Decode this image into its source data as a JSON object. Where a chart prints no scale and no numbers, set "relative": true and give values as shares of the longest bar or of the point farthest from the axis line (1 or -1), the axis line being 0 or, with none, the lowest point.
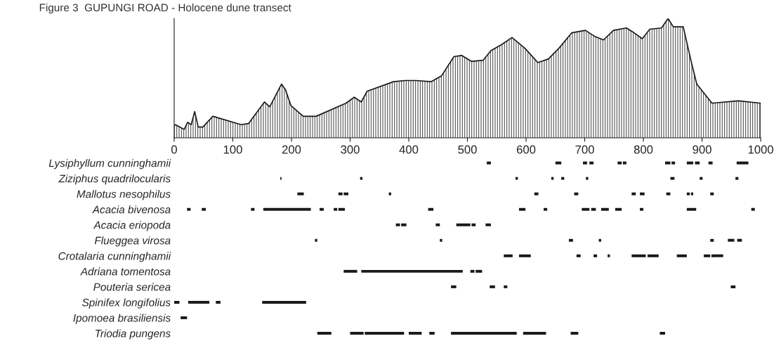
{
  "chart_data": [
    {
      "type": "area",
      "title": "Figure 3  GUPUNGI ROAD - Holocene dune transect",
      "relative": true,
      "color": "#1a1a1a",
      "tick_labels": "x",
      "xlim": [
        0,
        1000
      ],
      "xticks": [
        0,
        100,
        200,
        300,
        400,
        500,
        600,
        700,
        800,
        900,
        1000
      ],
      "grid": false,
      "legend": false,
      "x": [
        0,
        2,
        17,
        23,
        29,
        35,
        41,
        49,
        66,
        114,
        127,
        154,
        163,
        183,
        190,
        199,
        220,
        242,
        293,
        307,
        319,
        329,
        374,
        394,
        412,
        438,
        456,
        477,
        490,
        507,
        527,
        540,
        558,
        576,
        598,
        620,
        638,
        656,
        678,
        701,
        717,
        732,
        749,
        771,
        784,
        798,
        811,
        831,
        842,
        851,
        868,
        881,
        891,
        917,
        962,
        1000
      ],
      "values": [
        0.1,
        0.11,
        0.07,
        0.13,
        0.11,
        0.22,
        0.09,
        0.09,
        0.18,
        0.11,
        0.12,
        0.3,
        0.26,
        0.45,
        0.4,
        0.27,
        0.18,
        0.18,
        0.29,
        0.34,
        0.3,
        0.39,
        0.47,
        0.48,
        0.48,
        0.47,
        0.52,
        0.68,
        0.69,
        0.64,
        0.65,
        0.73,
        0.78,
        0.84,
        0.75,
        0.63,
        0.66,
        0.75,
        0.88,
        0.9,
        0.85,
        0.82,
        0.9,
        0.92,
        0.88,
        0.83,
        0.91,
        0.92,
        1.0,
        0.93,
        0.93,
        0.65,
        0.45,
        0.29,
        0.31,
        0.29
      ]
    },
    {
      "type": "bar",
      "orientation": "horizontal",
      "tick_labels": "y",
      "xlim": [
        0,
        1000
      ],
      "grid": false,
      "legend": false,
      "color": "#1a1a1a",
      "categories": [
        "Lysiphyllum cunninghamii",
        "Ziziphus quadrilocularis",
        "Mallotus nesophilus",
        "Acacia bivenosa",
        "Acacia eriopoda",
        "Flueggea virosa",
        "Crotalaria cunninghamii",
        "Adriana tomentosa",
        "Pouteria sericea",
        "Spinifex longifolius",
        "Ipomoea brasiliensis",
        "Triodia pungens"
      ],
      "series": [
        {
          "values": [
            7,
            2,
            11,
            6,
            7,
            4,
            15,
            23,
            9,
            9,
            11,
            24
          ],
          "base": [
            533,
            181,
            210,
            22,
            378,
            240,
            562,
            289,
            472,
            0,
            11,
            244
          ]
        },
        {
          "values": [
            10,
            4,
            7,
            7,
            9,
            4,
            20,
            173,
            9,
            36,
            null,
            23
          ],
          "base": [
            650,
            317,
            280,
            47,
            387,
            453,
            588,
            319,
            538,
            24,
            null,
            300
          ]
        },
        {
          "values": [
            7,
            4,
            8,
            6,
            7,
            7,
            7,
            7,
            6,
            8,
            null,
            67
          ],
          "base": [
            697,
            582,
            289,
            131,
            446,
            673,
            686,
            505,
            562,
            71,
            null,
            325
          ]
        },
        {
          "values": [
            7,
            4,
            4,
            81,
            24,
            4,
            6,
            11,
            8,
            75,
            null,
            22
          ],
          "base": [
            708,
            643,
            366,
            152,
            481,
            724,
            715,
            514,
            949,
            150,
            null,
            400
          ]
        },
        {
          "values": [
            7,
            5,
            7,
            7,
            7,
            6,
            4,
            null,
            null,
            null,
            null,
            9
          ],
          "base": [
            756,
            660,
            614,
            248,
            507,
            914,
            739,
            null,
            null,
            null,
            null,
            435
          ]
        },
        {
          "values": [
            6,
            4,
            7,
            6,
            9,
            11,
            24,
            null,
            null,
            null,
            null,
            112
          ],
          "base": [
            765,
            702,
            682,
            272,
            531,
            944,
            780,
            null,
            null,
            null,
            null,
            472
          ]
        },
        {
          "values": [
            9,
            7,
            7,
            11,
            null,
            8,
            19,
            null,
            null,
            null,
            null,
            39
          ],
          "base": [
            837,
            846,
            780,
            280,
            null,
            960,
            807,
            null,
            null,
            null,
            null,
            595
          ]
        },
        {
          "values": [
            6,
            5,
            8,
            9,
            null,
            null,
            17,
            null,
            null,
            null,
            null,
            13
          ],
          "base": [
            848,
            896,
            794,
            433,
            null,
            null,
            857,
            null,
            null,
            null,
            null,
            676
          ]
        },
        {
          "values": [
            11,
            5,
            7,
            11,
            null,
            null,
            11,
            null,
            null,
            null,
            null,
            9
          ],
          "base": [
            874,
            957,
            839,
            588,
            null,
            null,
            903,
            null,
            null,
            null,
            null,
            828
          ]
        },
        {
          "values": [
            8,
            null,
            5,
            6,
            null,
            null,
            20,
            null,
            null,
            null,
            null,
            null
          ],
          "base": [
            888,
            null,
            874,
            630,
            null,
            null,
            916,
            null,
            null,
            null,
            null,
            null
          ]
        },
        {
          "values": [
            7,
            null,
            4,
            13,
            null,
            null,
            null,
            null,
            null,
            null,
            null,
            null
          ],
          "base": [
            911,
            null,
            881,
            695,
            null,
            null,
            null,
            null,
            null,
            null,
            null,
            null
          ]
        },
        {
          "values": [
            20,
            null,
            6,
            8,
            null,
            null,
            null,
            null,
            null,
            null,
            null,
            null
          ],
          "base": [
            959,
            null,
            914,
            711,
            null,
            null,
            null,
            null,
            null,
            null,
            null,
            null
          ]
        },
        {
          "values": [
            null,
            null,
            null,
            13,
            null,
            null,
            null,
            null,
            null,
            null,
            null,
            null
          ],
          "base": [
            null,
            null,
            null,
            728,
            null,
            null,
            null,
            null,
            null,
            null,
            null,
            null
          ]
        },
        {
          "values": [
            null,
            null,
            null,
            11,
            null,
            null,
            null,
            null,
            null,
            null,
            null,
            null
          ],
          "base": [
            null,
            null,
            null,
            752,
            null,
            null,
            null,
            null,
            null,
            null,
            null,
            null
          ]
        },
        {
          "values": [
            null,
            null,
            null,
            6,
            null,
            null,
            null,
            null,
            null,
            null,
            null,
            null
          ],
          "base": [
            null,
            null,
            null,
            794,
            null,
            null,
            null,
            null,
            null,
            null,
            null,
            null
          ]
        },
        {
          "values": [
            null,
            null,
            null,
            16,
            null,
            null,
            null,
            null,
            null,
            null,
            null,
            null
          ],
          "base": [
            null,
            null,
            null,
            874,
            null,
            null,
            null,
            null,
            null,
            null,
            null,
            null
          ]
        },
        {
          "values": [
            null,
            null,
            null,
            6,
            null,
            null,
            null,
            null,
            null,
            null,
            null,
            null
          ],
          "base": [
            null,
            null,
            null,
            984,
            null,
            null,
            null,
            null,
            null,
            null,
            null,
            null
          ]
        }
      ]
    }
  ]
}
